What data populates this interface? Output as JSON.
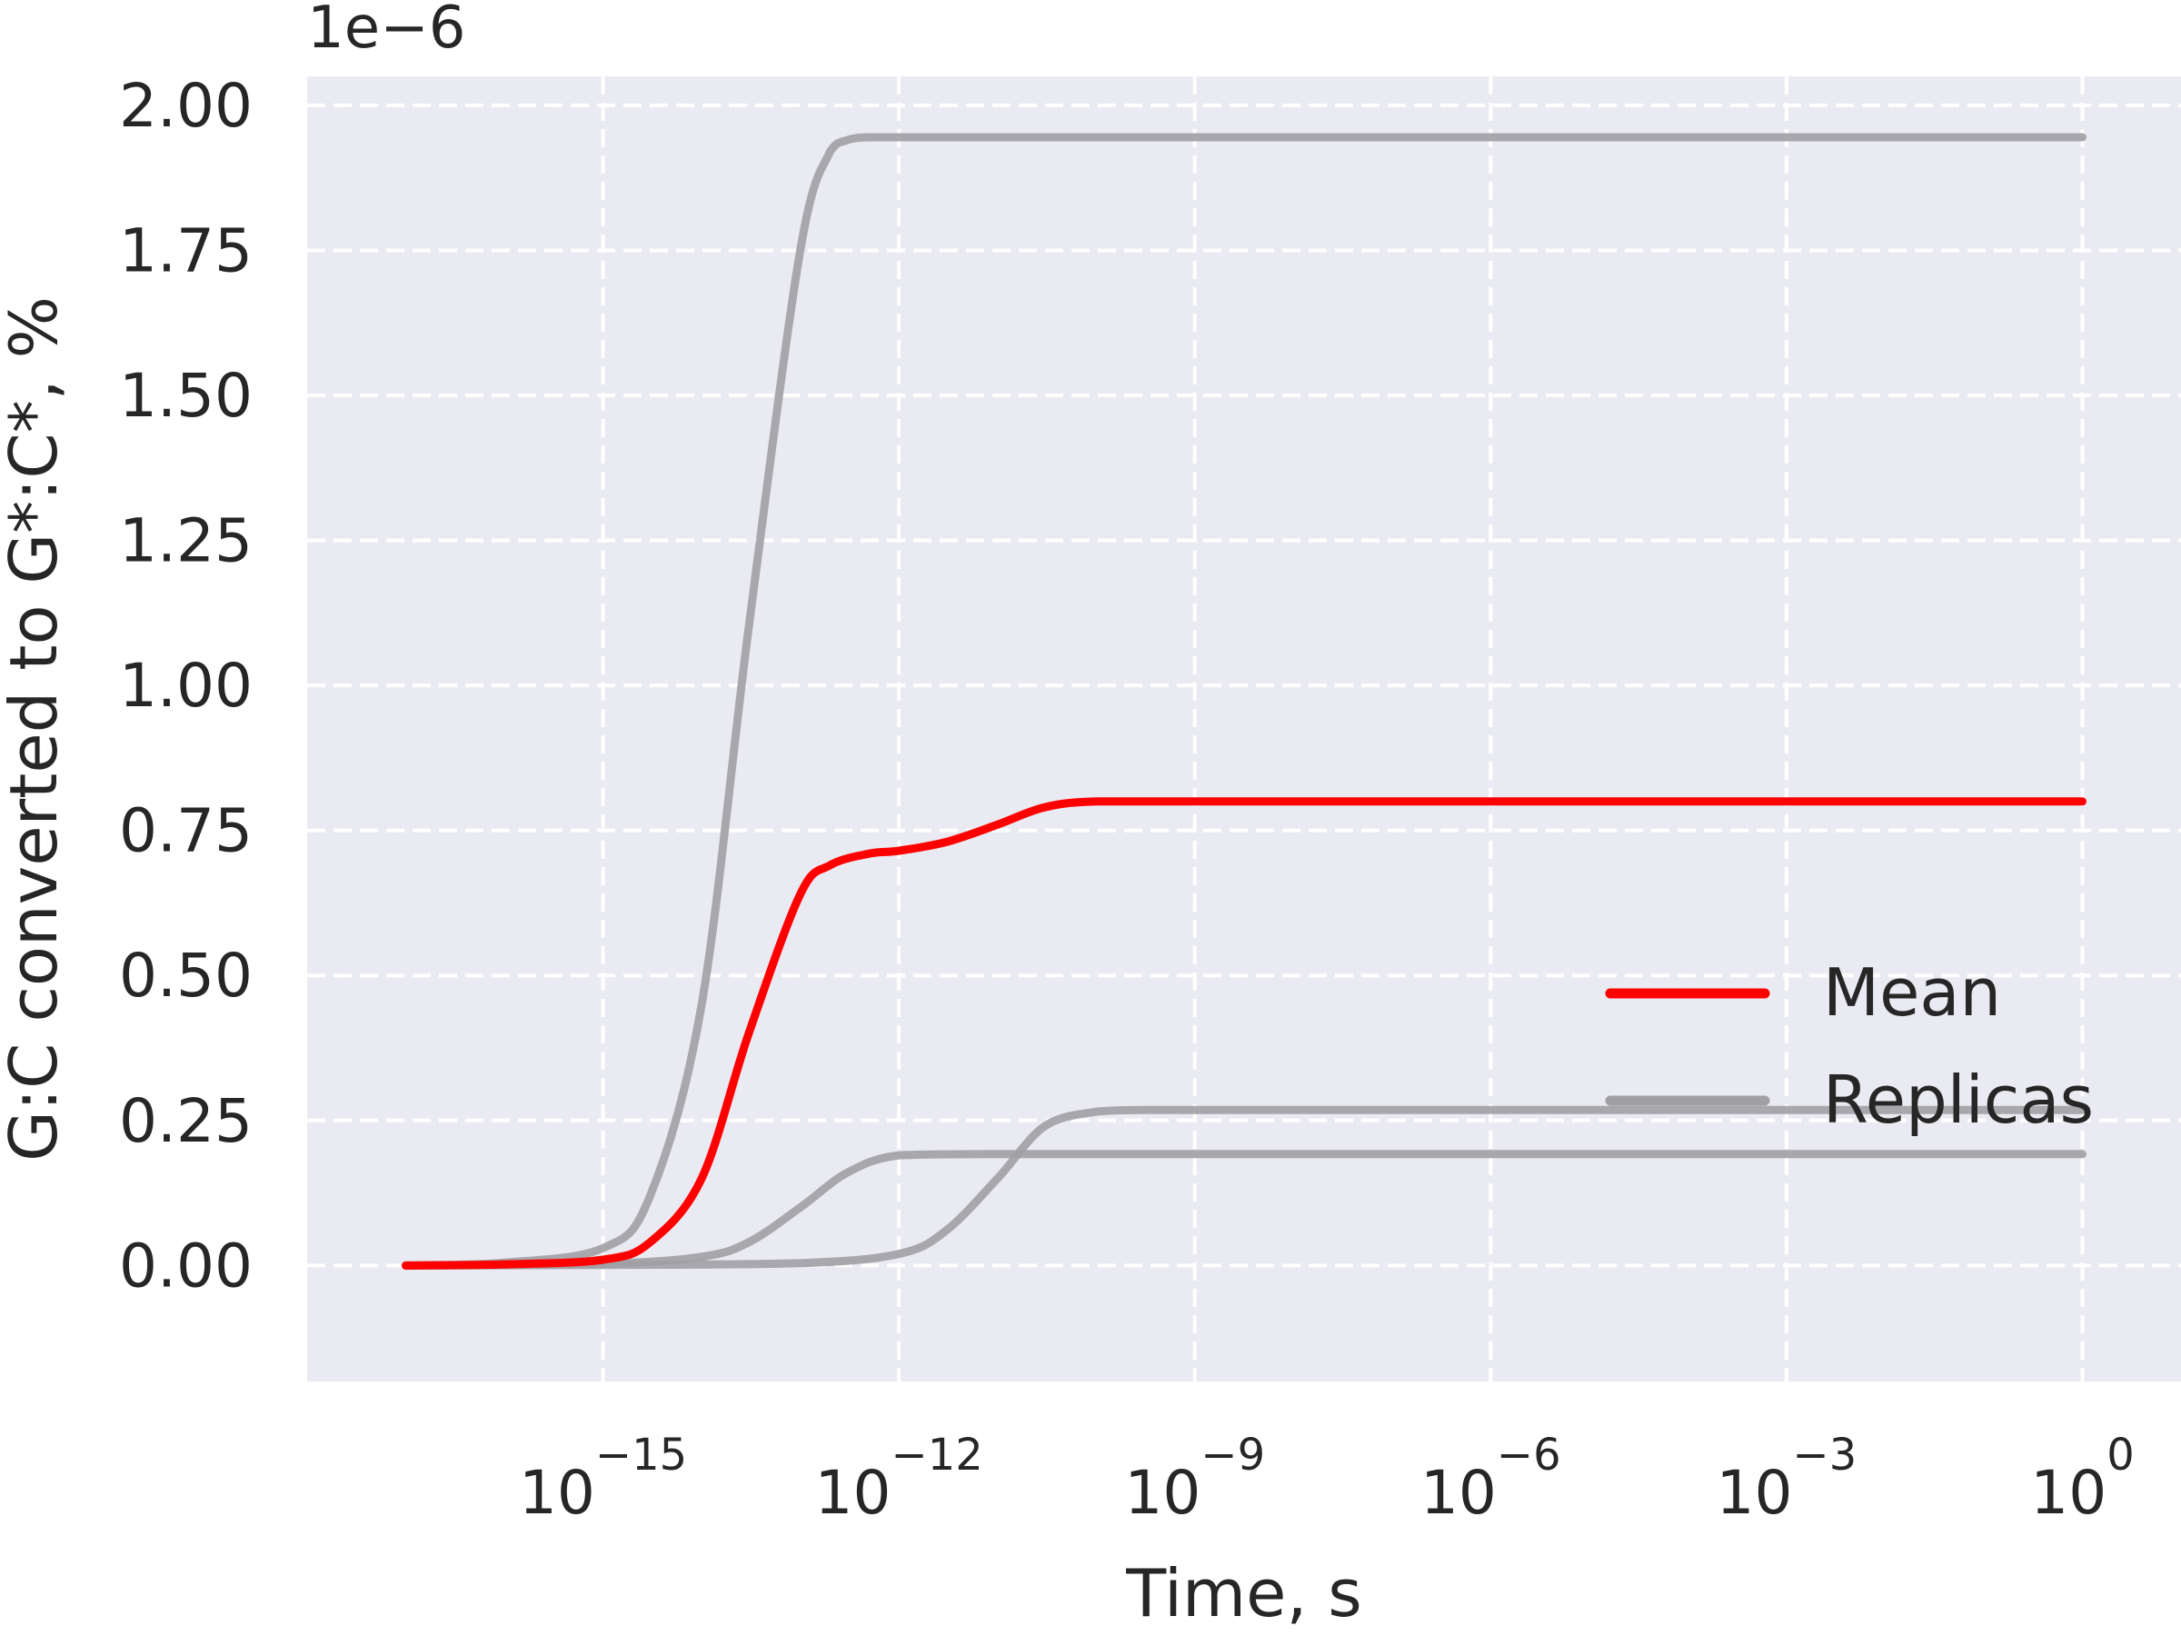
{
  "chart_data": {
    "type": "line",
    "xscale": "log",
    "xlabel": "Time, s",
    "ylabel": "G:C converted to G*:C*, %",
    "y_offset_text": "1e−6",
    "y_multiplier": 1e-06,
    "xlim": [
      1e-18,
      10
    ],
    "ylim": [
      -0.2,
      2.05
    ],
    "x_ticks": [
      {
        "value": 1e-15,
        "base": "10",
        "exponent": "−15"
      },
      {
        "value": 1e-12,
        "base": "10",
        "exponent": "−12"
      },
      {
        "value": 1e-09,
        "base": "10",
        "exponent": "−9"
      },
      {
        "value": 1e-06,
        "base": "10",
        "exponent": "−6"
      },
      {
        "value": 0.001,
        "base": "10",
        "exponent": "−3"
      },
      {
        "value": 1,
        "base": "10",
        "exponent": "0"
      }
    ],
    "y_ticks": [
      {
        "value": 0.0,
        "label": "0.00"
      },
      {
        "value": 0.25,
        "label": "0.25"
      },
      {
        "value": 0.5,
        "label": "0.50"
      },
      {
        "value": 0.75,
        "label": "0.75"
      },
      {
        "value": 1.0,
        "label": "1.00"
      },
      {
        "value": 1.25,
        "label": "1.25"
      },
      {
        "value": 1.5,
        "label": "1.50"
      },
      {
        "value": 1.75,
        "label": "1.75"
      },
      {
        "value": 2.0,
        "label": "2.00"
      }
    ],
    "grid": true,
    "legend_position": "center-right",
    "legend": [
      {
        "label": "Mean",
        "color": "#ff0000"
      },
      {
        "label": "Replicas",
        "color": "#a0a0a4"
      }
    ],
    "series": [
      {
        "name": "Replicas",
        "color": "#a0a0a4",
        "x": [
          1e-17,
          1e-16,
          1e-15,
          3e-15,
          1e-14,
          3e-14,
          1e-13,
          2e-13,
          3e-13,
          5e-13,
          1e-12,
          1e-11,
          1e-09,
          1e-06,
          0.001,
          1
        ],
        "y": [
          0.0,
          0.005,
          0.03,
          0.12,
          0.45,
          1.1,
          1.75,
          1.92,
          1.94,
          1.945,
          1.945,
          1.945,
          1.945,
          1.945,
          1.945,
          1.945
        ]
      },
      {
        "name": "Replicas",
        "color": "#a0a0a4",
        "x": [
          1e-17,
          1e-15,
          1e-14,
          3e-14,
          1e-13,
          3e-13,
          1e-12,
          1e-11,
          1e-09,
          1e-06,
          0.001,
          1
        ],
        "y": [
          0.0,
          0.003,
          0.015,
          0.04,
          0.1,
          0.16,
          0.19,
          0.192,
          0.192,
          0.192,
          0.192,
          0.192
        ]
      },
      {
        "name": "Replicas",
        "color": "#a0a0a4",
        "x": [
          1e-17,
          1e-15,
          1e-13,
          1e-12,
          3e-12,
          1e-11,
          3e-11,
          1e-10,
          3e-10,
          1e-09,
          1e-06,
          0.001,
          1
        ],
        "y": [
          0.0,
          0.001,
          0.004,
          0.02,
          0.06,
          0.15,
          0.24,
          0.265,
          0.268,
          0.268,
          0.268,
          0.268,
          0.268
        ]
      },
      {
        "name": "Mean",
        "color": "#ff0000",
        "x": [
          1e-17,
          1e-16,
          1e-15,
          3e-15,
          1e-14,
          3e-14,
          1e-13,
          2e-13,
          5e-13,
          1e-12,
          3e-12,
          1e-11,
          3e-11,
          1e-10,
          1e-09,
          1e-06,
          0.001,
          1
        ],
        "y": [
          0.0,
          0.002,
          0.01,
          0.04,
          0.15,
          0.4,
          0.64,
          0.69,
          0.71,
          0.715,
          0.73,
          0.76,
          0.79,
          0.8,
          0.8,
          0.8,
          0.8,
          0.8
        ]
      }
    ]
  }
}
